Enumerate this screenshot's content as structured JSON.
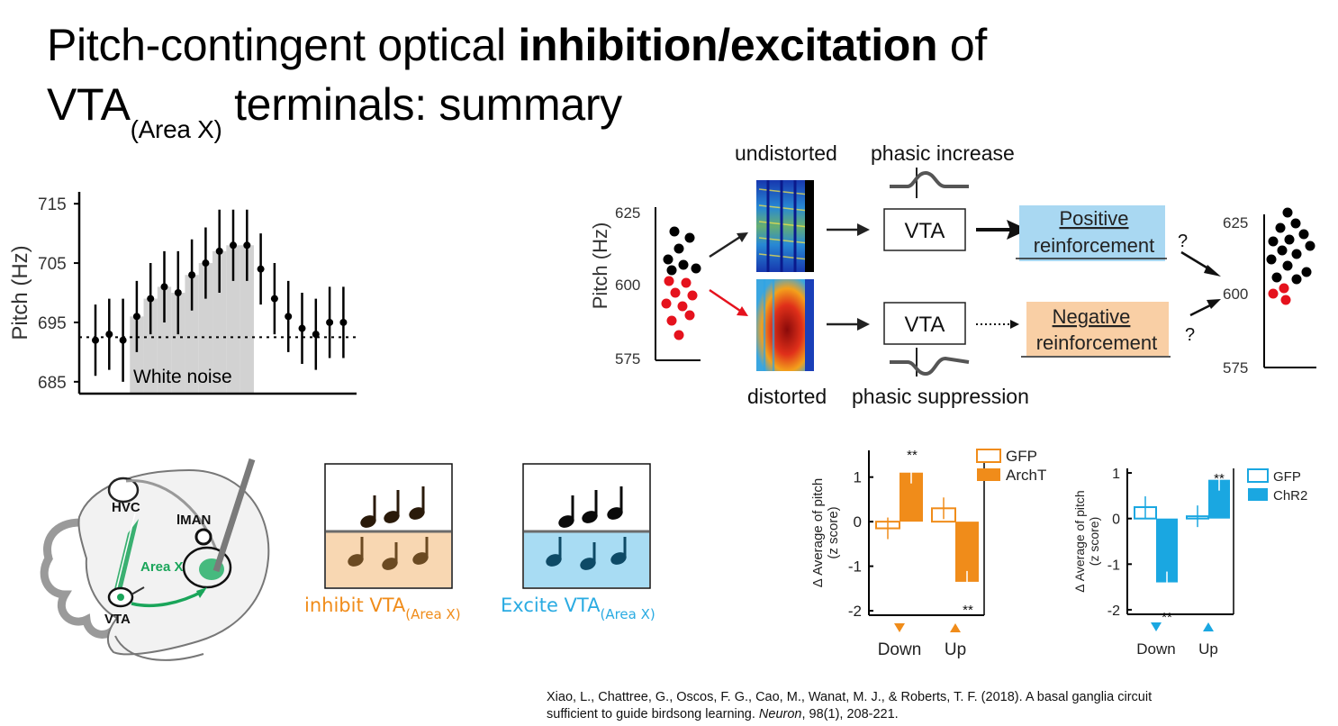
{
  "title": {
    "line1_pre": "Pitch-contingent optical ",
    "line1_bold": "inhibition/excitation",
    "line1_post": " of",
    "line2_pre": "VTA",
    "line2_sub": "(Area X)",
    "line2_post": " terminals: summary"
  },
  "panel_white_noise": {
    "ylabel": "Pitch (Hz)",
    "yticks": [
      "715",
      "705",
      "695",
      "685"
    ],
    "annotation": "White noise",
    "chart_data": {
      "type": "scatter",
      "ylabel": "Pitch (Hz)",
      "ylim": [
        683,
        717
      ],
      "x": [
        1,
        2,
        3,
        4,
        5,
        6,
        7,
        8,
        9,
        10,
        11,
        12,
        13,
        14,
        15,
        16,
        17,
        18,
        19
      ],
      "y": [
        692,
        693,
        692,
        696,
        699,
        701,
        700,
        703,
        705,
        707,
        708,
        708,
        704,
        699,
        696,
        694,
        693,
        695,
        695
      ],
      "err": [
        6,
        6,
        7,
        6,
        6,
        6,
        7,
        6,
        6,
        7,
        6,
        6,
        6,
        6,
        6,
        6,
        6,
        6,
        6
      ],
      "baseline": 692.5,
      "shaded_x_range": [
        4,
        12
      ]
    }
  },
  "schematic": {
    "ylabel": "Pitch (Hz)",
    "left_yticks": [
      "625",
      "600",
      "575"
    ],
    "right_yticks": [
      "625",
      "600",
      "575"
    ],
    "label_undistorted": "undistorted",
    "label_distorted": "distorted",
    "label_increase": "phasic increase",
    "label_suppression": "phasic suppression",
    "vta_label": "VTA",
    "positive_line1": "Positive",
    "positive_line2": "reinforcement",
    "negative_line1": "Negative",
    "negative_line2": "reinforcement",
    "question": "?",
    "colors": {
      "positive": "#a9d8f2",
      "negative": "#f9cfa5",
      "red": "#e5121d"
    }
  },
  "brain": {
    "labels": {
      "hvc": "HVC",
      "lman": "lMAN",
      "areax": "Area X",
      "vta": "VTA"
    },
    "colors": {
      "green": "#1aa55a",
      "gray": "#8c8c8c"
    }
  },
  "inhibit_box": {
    "label": "inhibit VTA",
    "label_sub": "(Area X)",
    "fill": "#f8d7b2",
    "color": "#f08c1a"
  },
  "excite_box": {
    "label": "Excite VTA",
    "label_sub": "(Area X)",
    "fill": "#a8dcf3",
    "color": "#2aabe2"
  },
  "archt_chart": {
    "ylabel_line1": "Δ Average of pitch",
    "ylabel_line2": "(z score)",
    "yticks": [
      "1",
      "0",
      "-1",
      "-2"
    ],
    "xticks": [
      "Down",
      "Up"
    ],
    "legend": [
      "GFP",
      "ArchT"
    ],
    "sig": "**",
    "color": "#f08c1a",
    "chart_data": {
      "type": "bar",
      "categories": [
        "Down",
        "Up"
      ],
      "series": [
        {
          "name": "GFP",
          "values": [
            -0.15,
            0.3
          ]
        },
        {
          "name": "ArchT",
          "values": [
            1.1,
            -1.35
          ]
        }
      ],
      "ylim": [
        -2.1,
        1.6
      ]
    }
  },
  "chr2_chart": {
    "ylabel_line1": "Δ Average of pitch",
    "ylabel_line2": "(z score)",
    "yticks": [
      "1",
      "0",
      "-1",
      "-2"
    ],
    "xticks": [
      "Down",
      "Up"
    ],
    "legend": [
      "GFP",
      "ChR2"
    ],
    "sig": "**",
    "color": "#1aa7e1",
    "chart_data": {
      "type": "bar",
      "categories": [
        "Down",
        "Up"
      ],
      "series": [
        {
          "name": "GFP",
          "values": [
            0.25,
            0.05
          ]
        },
        {
          "name": "ChR2",
          "values": [
            -1.4,
            0.85
          ]
        }
      ],
      "ylim": [
        -2.1,
        1.1
      ]
    }
  },
  "citation": {
    "line1": "Xiao, L., Chattree, G., Oscos, F. G., Cao, M., Wanat, M. J., & Roberts, T. F. (2018). A basal ganglia circuit",
    "line2_pre": "sufficient to guide birdsong learning. ",
    "journal": "Neuron",
    "volume": ", 98",
    "issue": "(1), 208-221."
  }
}
